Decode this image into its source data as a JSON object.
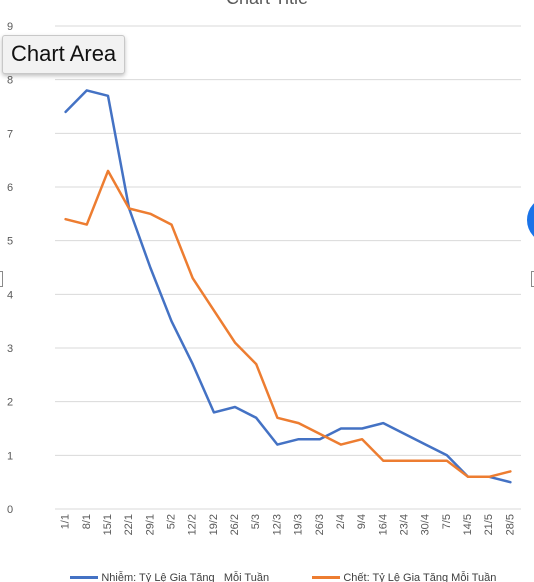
{
  "window": {
    "tooltip_text": "Chart Area"
  },
  "colors": {
    "series_blue": "#4472C4",
    "series_orange": "#ED7D31",
    "grid": "#d9d9d9",
    "axis_text": "#595959",
    "accent_circle": "#1a73e8"
  },
  "chart_data": {
    "type": "line",
    "title": "Chart Title",
    "xlabel": "",
    "ylabel": "",
    "ylim": [
      0,
      9
    ],
    "yticks": [
      "0",
      "1",
      "2",
      "3",
      "4",
      "5",
      "6",
      "7",
      "8",
      "9"
    ],
    "grid": true,
    "legend_position": "bottom",
    "categories": [
      "1/1",
      "8/1",
      "15/1",
      "22/1",
      "29/1",
      "5/2",
      "12/2",
      "19/2",
      "26/2",
      "5/3",
      "12/3",
      "19/3",
      "26/3",
      "2/4",
      "9/4",
      "16/4",
      "23/4",
      "30/4",
      "7/5",
      "14/5",
      "21/5",
      "28/5"
    ],
    "series": [
      {
        "name": "Nhiễm: Tỷ Lệ Gia Tăng   Mỗi Tuần",
        "color": "#4472C4",
        "values": [
          7.4,
          7.8,
          7.7,
          5.6,
          4.5,
          3.5,
          2.7,
          1.8,
          1.9,
          1.7,
          1.2,
          1.3,
          1.3,
          1.5,
          1.5,
          1.6,
          1.4,
          1.2,
          1.0,
          0.6,
          0.6,
          0.5
        ]
      },
      {
        "name": "Chết: Tỷ Lệ Gia Tăng Mỗi Tuần",
        "color": "#ED7D31",
        "values": [
          5.4,
          5.3,
          6.3,
          5.6,
          5.5,
          5.3,
          4.3,
          3.7,
          3.1,
          2.7,
          1.7,
          1.6,
          1.4,
          1.2,
          1.3,
          0.9,
          0.9,
          0.9,
          0.9,
          0.6,
          0.6,
          0.7
        ]
      }
    ]
  }
}
